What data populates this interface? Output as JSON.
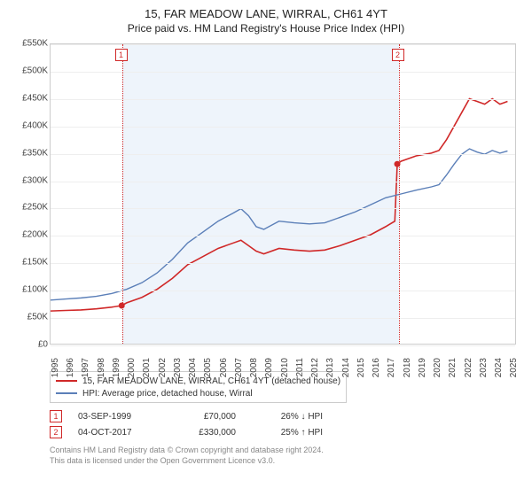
{
  "chart": {
    "title": "15, FAR MEADOW LANE, WIRRAL, CH61 4YT",
    "subtitle": "Price paid vs. HM Land Registry's House Price Index (HPI)",
    "type": "line",
    "background_color": "#ffffff",
    "shaded_range_color": "#eef4fb",
    "grid_color": "#eeeeee",
    "border_color": "#cccccc",
    "x": {
      "min": 1995,
      "max": 2025.5,
      "ticks": [
        1995,
        1996,
        1997,
        1998,
        1999,
        2000,
        2001,
        2002,
        2003,
        2004,
        2005,
        2006,
        2007,
        2008,
        2009,
        2010,
        2011,
        2012,
        2013,
        2014,
        2015,
        2016,
        2017,
        2018,
        2019,
        2020,
        2021,
        2022,
        2023,
        2024,
        2025
      ]
    },
    "y": {
      "min": 0,
      "max": 550000,
      "ticks": [
        0,
        50000,
        100000,
        150000,
        200000,
        250000,
        300000,
        350000,
        400000,
        450000,
        500000,
        550000
      ],
      "tick_labels": [
        "£0",
        "£50K",
        "£100K",
        "£150K",
        "£200K",
        "£250K",
        "£300K",
        "£350K",
        "£400K",
        "£450K",
        "£500K",
        "£550K"
      ]
    },
    "shaded_range": {
      "x0": 1999.67,
      "x1": 2017.76
    },
    "series": [
      {
        "name": "15, FAR MEADOW LANE, WIRRAL, CH61 4YT (detached house)",
        "color": "#d02828",
        "line_width": 1.6,
        "points": [
          [
            1995,
            60000
          ],
          [
            1996,
            61000
          ],
          [
            1997,
            62000
          ],
          [
            1998,
            64000
          ],
          [
            1999,
            67000
          ],
          [
            1999.67,
            70000
          ],
          [
            2000,
            75000
          ],
          [
            2001,
            85000
          ],
          [
            2002,
            100000
          ],
          [
            2003,
            120000
          ],
          [
            2004,
            145000
          ],
          [
            2005,
            160000
          ],
          [
            2006,
            175000
          ],
          [
            2007,
            185000
          ],
          [
            2007.5,
            190000
          ],
          [
            2008,
            180000
          ],
          [
            2008.5,
            170000
          ],
          [
            2009,
            165000
          ],
          [
            2010,
            175000
          ],
          [
            2011,
            172000
          ],
          [
            2012,
            170000
          ],
          [
            2013,
            172000
          ],
          [
            2014,
            180000
          ],
          [
            2015,
            190000
          ],
          [
            2016,
            200000
          ],
          [
            2017,
            215000
          ],
          [
            2017.6,
            225000
          ],
          [
            2017.76,
            330000
          ],
          [
            2018,
            335000
          ],
          [
            2019,
            345000
          ],
          [
            2020,
            350000
          ],
          [
            2020.5,
            355000
          ],
          [
            2021,
            375000
          ],
          [
            2021.5,
            400000
          ],
          [
            2022,
            425000
          ],
          [
            2022.5,
            450000
          ],
          [
            2023,
            445000
          ],
          [
            2023.5,
            440000
          ],
          [
            2024,
            450000
          ],
          [
            2024.5,
            440000
          ],
          [
            2025,
            445000
          ]
        ]
      },
      {
        "name": "HPI: Average price, detached house, Wirral",
        "color": "#5b7fb8",
        "line_width": 1.4,
        "points": [
          [
            1995,
            80000
          ],
          [
            1996,
            82000
          ],
          [
            1997,
            84000
          ],
          [
            1998,
            87000
          ],
          [
            1999,
            92000
          ],
          [
            2000,
            100000
          ],
          [
            2001,
            112000
          ],
          [
            2002,
            130000
          ],
          [
            2003,
            155000
          ],
          [
            2004,
            185000
          ],
          [
            2005,
            205000
          ],
          [
            2006,
            225000
          ],
          [
            2007,
            240000
          ],
          [
            2007.5,
            248000
          ],
          [
            2008,
            235000
          ],
          [
            2008.5,
            215000
          ],
          [
            2009,
            210000
          ],
          [
            2010,
            225000
          ],
          [
            2011,
            222000
          ],
          [
            2012,
            220000
          ],
          [
            2013,
            222000
          ],
          [
            2014,
            232000
          ],
          [
            2015,
            242000
          ],
          [
            2016,
            255000
          ],
          [
            2017,
            268000
          ],
          [
            2018,
            275000
          ],
          [
            2019,
            282000
          ],
          [
            2020,
            288000
          ],
          [
            2020.5,
            292000
          ],
          [
            2021,
            310000
          ],
          [
            2021.5,
            330000
          ],
          [
            2022,
            348000
          ],
          [
            2022.5,
            358000
          ],
          [
            2023,
            352000
          ],
          [
            2023.5,
            348000
          ],
          [
            2024,
            355000
          ],
          [
            2024.5,
            350000
          ],
          [
            2025,
            354000
          ]
        ]
      }
    ],
    "event_markers": [
      {
        "n": "1",
        "x": 1999.67,
        "y": 70000
      },
      {
        "n": "2",
        "x": 2017.76,
        "y": 330000
      }
    ]
  },
  "legend": {
    "items": [
      {
        "color": "#d02828",
        "label": "15, FAR MEADOW LANE, WIRRAL, CH61 4YT (detached house)"
      },
      {
        "color": "#5b7fb8",
        "label": "HPI: Average price, detached house, Wirral"
      }
    ]
  },
  "events": [
    {
      "n": "1",
      "date": "03-SEP-1999",
      "price": "£70,000",
      "diff": "26% ↓ HPI"
    },
    {
      "n": "2",
      "date": "04-OCT-2017",
      "price": "£330,000",
      "diff": "25% ↑ HPI"
    }
  ],
  "footer": {
    "line1": "Contains HM Land Registry data © Crown copyright and database right 2024.",
    "line2": "This data is licensed under the Open Government Licence v3.0."
  }
}
